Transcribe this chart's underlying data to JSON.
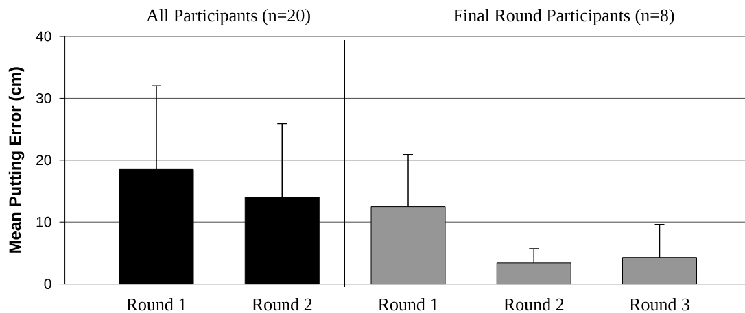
{
  "chart_data": [
    {
      "type": "bar",
      "title": "All Participants (n=20)",
      "ylabel": "Mean Putting Error (cm)",
      "categories": [
        "Round 1",
        "Round 2"
      ],
      "values": [
        18.5,
        14.0
      ],
      "colors": [
        "#000000",
        "#000000"
      ],
      "errors": [
        [
          18.5,
          32.0
        ],
        [
          14.0,
          25.9
        ]
      ],
      "ylim": [
        0,
        40
      ],
      "yticks": [
        0,
        10,
        20,
        30,
        40
      ],
      "grid": "y"
    },
    {
      "type": "bar",
      "title": "Final Round Participants (n=8)",
      "categories": [
        "Round 1",
        "Round 2",
        "Round 3"
      ],
      "values": [
        12.5,
        3.4,
        4.3
      ],
      "colors": [
        "#969696",
        "#969696",
        "#969696"
      ],
      "errors": [
        [
          12.5,
          20.9
        ],
        [
          3.4,
          5.7
        ],
        [
          4.3,
          9.6
        ]
      ],
      "ylim": [
        0,
        40
      ],
      "yticks": [
        0,
        10,
        20,
        30,
        40
      ],
      "grid": "y",
      "tick_labels": "x"
    }
  ]
}
